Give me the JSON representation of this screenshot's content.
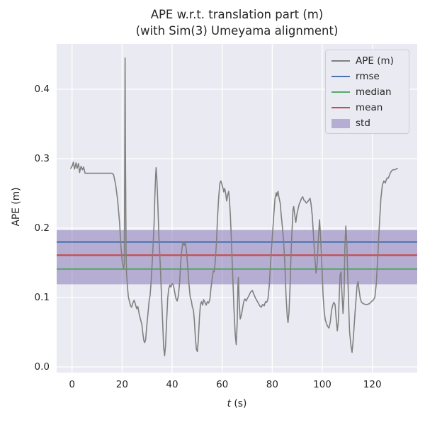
{
  "title": {
    "line1": "APE w.r.t. translation part (m)",
    "line2": "(with Sim(3) Umeyama alignment)"
  },
  "axes": {
    "xlabel_var": "t",
    "xlabel_rest": " (s)",
    "ylabel": "APE (m)"
  },
  "legend": {
    "items": [
      {
        "label": "APE (m)",
        "type": "line",
        "color": "#808080"
      },
      {
        "label": "rmse",
        "type": "line",
        "color": "#4c72b0"
      },
      {
        "label": "median",
        "type": "line",
        "color": "#55a868"
      },
      {
        "label": "mean",
        "type": "line",
        "color": "#c44e52"
      },
      {
        "label": "std",
        "type": "patch",
        "color": "#8172b2"
      }
    ]
  },
  "colors": {
    "figure_bg": "#ffffff",
    "plot_bg": "#eaeaf2",
    "grid": "#ffffff",
    "ape_line": "#808080",
    "rmse": "#4c72b0",
    "median": "#55a868",
    "mean": "#c44e52",
    "std_fill": "#8172b2",
    "text": "#262626"
  },
  "chart_data": {
    "type": "line",
    "title": "APE w.r.t. translation part (m) (with Sim(3) Umeyama alignment)",
    "xlabel": "t (s)",
    "ylabel": "APE (m)",
    "xlim": [
      -6.1,
      137.9
    ],
    "ylim": [
      -0.009,
      0.465
    ],
    "grid": true,
    "legend_position": "upper right",
    "x_axis": {
      "tick_values": [
        0,
        20,
        40,
        60,
        80,
        100,
        120
      ],
      "tick_labels": [
        "0",
        "20",
        "40",
        "60",
        "80",
        "100",
        "120"
      ]
    },
    "y_axis": {
      "tick_values": [
        0.0,
        0.1,
        0.2,
        0.3,
        0.4
      ],
      "tick_labels": [
        "0.0",
        "0.1",
        "0.2",
        "0.3",
        "0.4"
      ]
    },
    "statistics": {
      "rmse": 0.18,
      "mean": 0.161,
      "median": 0.141,
      "std": 0.039,
      "std_band_low": 0.119,
      "std_band_high": 0.197
    },
    "series": [
      {
        "name": "APE (m)",
        "points": [
          [
            -0.5,
            0.286
          ],
          [
            0.1,
            0.29
          ],
          [
            0.5,
            0.295
          ],
          [
            1.0,
            0.285
          ],
          [
            1.6,
            0.294
          ],
          [
            2.0,
            0.286
          ],
          [
            2.6,
            0.293
          ],
          [
            3.0,
            0.28
          ],
          [
            3.6,
            0.289
          ],
          [
            4.2,
            0.284
          ],
          [
            4.6,
            0.288
          ],
          [
            5.2,
            0.279
          ],
          [
            6.5,
            0.279
          ],
          [
            8.0,
            0.279
          ],
          [
            10.0,
            0.279
          ],
          [
            12.0,
            0.279
          ],
          [
            14.0,
            0.279
          ],
          [
            16.0,
            0.279
          ],
          [
            16.6,
            0.277
          ],
          [
            17.4,
            0.263
          ],
          [
            18.2,
            0.241
          ],
          [
            19.0,
            0.208
          ],
          [
            19.5,
            0.175
          ],
          [
            20.0,
            0.153
          ],
          [
            20.6,
            0.141
          ],
          [
            20.9,
            0.149
          ],
          [
            21.05,
            0.294
          ],
          [
            21.2,
            0.445
          ],
          [
            21.35,
            0.313
          ],
          [
            21.6,
            0.17
          ],
          [
            21.8,
            0.135
          ],
          [
            22.1,
            0.117
          ],
          [
            22.5,
            0.101
          ],
          [
            22.9,
            0.095
          ],
          [
            23.4,
            0.088
          ],
          [
            23.8,
            0.086
          ],
          [
            24.3,
            0.092
          ],
          [
            24.8,
            0.096
          ],
          [
            25.2,
            0.092
          ],
          [
            25.8,
            0.084
          ],
          [
            26.3,
            0.087
          ],
          [
            26.9,
            0.075
          ],
          [
            27.4,
            0.068
          ],
          [
            27.9,
            0.061
          ],
          [
            28.3,
            0.048
          ],
          [
            28.7,
            0.038
          ],
          [
            29.0,
            0.035
          ],
          [
            29.4,
            0.039
          ],
          [
            29.9,
            0.06
          ],
          [
            30.4,
            0.079
          ],
          [
            30.8,
            0.095
          ],
          [
            31.2,
            0.103
          ],
          [
            31.6,
            0.122
          ],
          [
            32.0,
            0.149
          ],
          [
            32.4,
            0.177
          ],
          [
            32.8,
            0.208
          ],
          [
            33.1,
            0.246
          ],
          [
            33.4,
            0.275
          ],
          [
            33.6,
            0.287
          ],
          [
            33.9,
            0.27
          ],
          [
            34.3,
            0.232
          ],
          [
            34.7,
            0.189
          ],
          [
            35.2,
            0.151
          ],
          [
            35.7,
            0.108
          ],
          [
            36.2,
            0.065
          ],
          [
            36.6,
            0.029
          ],
          [
            37.0,
            0.016
          ],
          [
            37.4,
            0.032
          ],
          [
            37.8,
            0.065
          ],
          [
            38.2,
            0.098
          ],
          [
            38.6,
            0.112
          ],
          [
            39.1,
            0.118
          ],
          [
            39.5,
            0.115
          ],
          [
            40.0,
            0.12
          ],
          [
            40.5,
            0.118
          ],
          [
            41.0,
            0.108
          ],
          [
            41.5,
            0.099
          ],
          [
            42.0,
            0.095
          ],
          [
            42.5,
            0.103
          ],
          [
            43.0,
            0.122
          ],
          [
            43.4,
            0.149
          ],
          [
            43.9,
            0.17
          ],
          [
            44.3,
            0.18
          ],
          [
            44.8,
            0.175
          ],
          [
            45.3,
            0.179
          ],
          [
            45.7,
            0.168
          ],
          [
            46.2,
            0.146
          ],
          [
            46.7,
            0.12
          ],
          [
            47.2,
            0.101
          ],
          [
            47.7,
            0.095
          ],
          [
            48.1,
            0.086
          ],
          [
            48.5,
            0.082
          ],
          [
            48.9,
            0.065
          ],
          [
            49.3,
            0.041
          ],
          [
            49.7,
            0.025
          ],
          [
            50.1,
            0.022
          ],
          [
            50.5,
            0.041
          ],
          [
            50.9,
            0.07
          ],
          [
            51.3,
            0.089
          ],
          [
            51.7,
            0.094
          ],
          [
            52.2,
            0.089
          ],
          [
            52.6,
            0.097
          ],
          [
            53.1,
            0.093
          ],
          [
            53.6,
            0.089
          ],
          [
            54.1,
            0.094
          ],
          [
            54.6,
            0.092
          ],
          [
            55.1,
            0.098
          ],
          [
            55.5,
            0.113
          ],
          [
            56.0,
            0.127
          ],
          [
            56.4,
            0.138
          ],
          [
            56.8,
            0.137
          ],
          [
            57.2,
            0.151
          ],
          [
            57.7,
            0.179
          ],
          [
            58.1,
            0.213
          ],
          [
            58.6,
            0.244
          ],
          [
            59.1,
            0.265
          ],
          [
            59.5,
            0.268
          ],
          [
            59.9,
            0.263
          ],
          [
            60.3,
            0.258
          ],
          [
            60.6,
            0.252
          ],
          [
            61.0,
            0.257
          ],
          [
            61.4,
            0.25
          ],
          [
            61.8,
            0.239
          ],
          [
            62.2,
            0.248
          ],
          [
            62.6,
            0.253
          ],
          [
            62.9,
            0.241
          ],
          [
            63.3,
            0.217
          ],
          [
            63.7,
            0.179
          ],
          [
            64.2,
            0.132
          ],
          [
            64.7,
            0.084
          ],
          [
            65.2,
            0.046
          ],
          [
            65.6,
            0.032
          ],
          [
            66.0,
            0.065
          ],
          [
            66.3,
            0.117
          ],
          [
            66.5,
            0.129
          ],
          [
            66.8,
            0.094
          ],
          [
            67.2,
            0.069
          ],
          [
            67.7,
            0.075
          ],
          [
            68.2,
            0.086
          ],
          [
            68.7,
            0.095
          ],
          [
            69.1,
            0.098
          ],
          [
            69.6,
            0.095
          ],
          [
            70.1,
            0.099
          ],
          [
            70.6,
            0.102
          ],
          [
            71.1,
            0.106
          ],
          [
            71.6,
            0.109
          ],
          [
            72.1,
            0.11
          ],
          [
            72.6,
            0.105
          ],
          [
            73.2,
            0.1
          ],
          [
            73.8,
            0.096
          ],
          [
            74.4,
            0.092
          ],
          [
            75.0,
            0.088
          ],
          [
            75.6,
            0.086
          ],
          [
            76.2,
            0.09
          ],
          [
            76.8,
            0.088
          ],
          [
            77.3,
            0.094
          ],
          [
            77.8,
            0.093
          ],
          [
            78.3,
            0.098
          ],
          [
            78.8,
            0.117
          ],
          [
            79.2,
            0.141
          ],
          [
            79.7,
            0.17
          ],
          [
            80.2,
            0.196
          ],
          [
            80.6,
            0.219
          ],
          [
            81.1,
            0.242
          ],
          [
            81.6,
            0.251
          ],
          [
            81.8,
            0.246
          ],
          [
            82.3,
            0.253
          ],
          [
            82.7,
            0.244
          ],
          [
            83.2,
            0.236
          ],
          [
            83.5,
            0.222
          ],
          [
            84.0,
            0.203
          ],
          [
            84.5,
            0.184
          ],
          [
            85.0,
            0.151
          ],
          [
            85.5,
            0.103
          ],
          [
            86.0,
            0.073
          ],
          [
            86.3,
            0.064
          ],
          [
            86.7,
            0.079
          ],
          [
            87.1,
            0.113
          ],
          [
            87.4,
            0.151
          ],
          [
            87.8,
            0.189
          ],
          [
            88.3,
            0.227
          ],
          [
            88.6,
            0.231
          ],
          [
            89.0,
            0.219
          ],
          [
            89.4,
            0.208
          ],
          [
            89.8,
            0.219
          ],
          [
            90.3,
            0.227
          ],
          [
            90.8,
            0.235
          ],
          [
            91.3,
            0.239
          ],
          [
            91.7,
            0.243
          ],
          [
            92.2,
            0.245
          ],
          [
            92.7,
            0.24
          ],
          [
            93.1,
            0.239
          ],
          [
            93.6,
            0.236
          ],
          [
            94.1,
            0.238
          ],
          [
            94.6,
            0.24
          ],
          [
            95.1,
            0.243
          ],
          [
            95.5,
            0.235
          ],
          [
            96.0,
            0.217
          ],
          [
            96.5,
            0.189
          ],
          [
            97.0,
            0.158
          ],
          [
            97.5,
            0.135
          ],
          [
            98.0,
            0.151
          ],
          [
            98.5,
            0.189
          ],
          [
            98.9,
            0.212
          ],
          [
            99.3,
            0.189
          ],
          [
            99.8,
            0.151
          ],
          [
            100.3,
            0.103
          ],
          [
            100.8,
            0.079
          ],
          [
            101.2,
            0.068
          ],
          [
            101.7,
            0.062
          ],
          [
            102.2,
            0.058
          ],
          [
            102.7,
            0.056
          ],
          [
            103.2,
            0.065
          ],
          [
            103.7,
            0.082
          ],
          [
            104.2,
            0.089
          ],
          [
            104.6,
            0.093
          ],
          [
            105.1,
            0.09
          ],
          [
            105.6,
            0.067
          ],
          [
            106.0,
            0.052
          ],
          [
            106.4,
            0.065
          ],
          [
            106.8,
            0.103
          ],
          [
            107.1,
            0.132
          ],
          [
            107.5,
            0.137
          ],
          [
            107.9,
            0.103
          ],
          [
            108.3,
            0.077
          ],
          [
            108.7,
            0.103
          ],
          [
            109.0,
            0.17
          ],
          [
            109.4,
            0.203
          ],
          [
            109.8,
            0.179
          ],
          [
            110.2,
            0.132
          ],
          [
            110.6,
            0.084
          ],
          [
            110.9,
            0.051
          ],
          [
            111.4,
            0.032
          ],
          [
            111.9,
            0.021
          ],
          [
            112.3,
            0.037
          ],
          [
            112.7,
            0.058
          ],
          [
            113.1,
            0.079
          ],
          [
            113.5,
            0.098
          ],
          [
            113.9,
            0.117
          ],
          [
            114.3,
            0.123
          ],
          [
            114.7,
            0.111
          ],
          [
            115.2,
            0.098
          ],
          [
            115.7,
            0.093
          ],
          [
            116.4,
            0.091
          ],
          [
            117.2,
            0.09
          ],
          [
            118.0,
            0.09
          ],
          [
            118.8,
            0.091
          ],
          [
            119.6,
            0.094
          ],
          [
            120.3,
            0.096
          ],
          [
            121.0,
            0.1
          ],
          [
            121.6,
            0.121
          ],
          [
            122.2,
            0.16
          ],
          [
            122.8,
            0.205
          ],
          [
            123.4,
            0.242
          ],
          [
            124.0,
            0.262
          ],
          [
            124.6,
            0.268
          ],
          [
            125.2,
            0.265
          ],
          [
            125.8,
            0.272
          ],
          [
            126.4,
            0.272
          ],
          [
            127.0,
            0.278
          ],
          [
            127.6,
            0.282
          ],
          [
            128.2,
            0.284
          ],
          [
            128.9,
            0.284
          ],
          [
            129.5,
            0.285
          ],
          [
            130.0,
            0.286
          ]
        ]
      }
    ]
  }
}
